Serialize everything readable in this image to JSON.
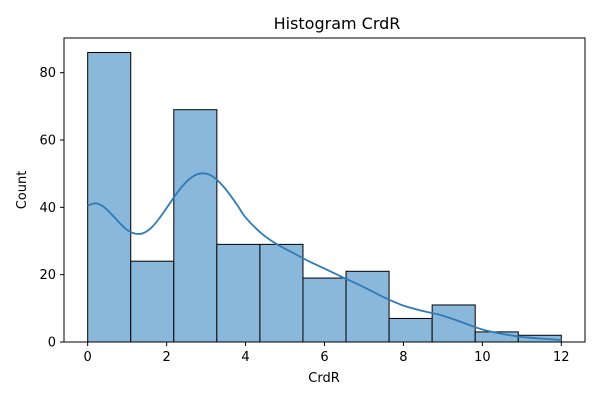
{
  "chart_data": {
    "type": "histogram",
    "title": "Histogram CrdR",
    "xlabel": "CrdR",
    "ylabel": "Count",
    "bins": [
      {
        "start": 0.0,
        "end": 1.0909,
        "count": 86
      },
      {
        "start": 1.0909,
        "end": 2.1818,
        "count": 24
      },
      {
        "start": 2.1818,
        "end": 3.2727,
        "count": 69
      },
      {
        "start": 3.2727,
        "end": 4.3636,
        "count": 29
      },
      {
        "start": 4.3636,
        "end": 5.4545,
        "count": 29
      },
      {
        "start": 5.4545,
        "end": 6.5455,
        "count": 19
      },
      {
        "start": 6.5455,
        "end": 7.6364,
        "count": 21
      },
      {
        "start": 7.6364,
        "end": 8.7273,
        "count": 7
      },
      {
        "start": 8.7273,
        "end": 9.8182,
        "count": 11
      },
      {
        "start": 9.8182,
        "end": 10.9091,
        "count": 3
      },
      {
        "start": 10.9091,
        "end": 12.0,
        "count": 2
      }
    ],
    "kde": {
      "x": [
        0.0,
        0.2,
        0.4,
        0.6,
        0.8,
        1.0,
        1.2,
        1.4,
        1.6,
        1.8,
        2.0,
        2.2,
        2.4,
        2.6,
        2.8,
        3.0,
        3.2,
        3.4,
        3.6,
        3.8,
        4.0,
        4.4,
        4.8,
        5.2,
        5.6,
        6.0,
        6.5,
        7.0,
        7.5,
        8.0,
        8.5,
        9.0,
        9.5,
        10.0,
        10.5,
        11.0,
        11.5,
        12.0
      ],
      "y": [
        40.5,
        41.2,
        40.2,
        38.0,
        35.5,
        33.3,
        32.2,
        32.3,
        33.8,
        36.5,
        39.8,
        43.2,
        46.3,
        48.6,
        49.9,
        50.0,
        48.9,
        46.7,
        43.8,
        40.5,
        37.0,
        32.3,
        29.0,
        26.5,
        24.0,
        21.8,
        19.0,
        16.3,
        13.3,
        10.8,
        9.2,
        7.8,
        5.8,
        3.7,
        2.4,
        1.5,
        1.0,
        0.6
      ]
    },
    "xlim": [
      -0.6,
      12.6
    ],
    "ylim": [
      0,
      90.3
    ],
    "xticks": [
      0,
      2,
      4,
      6,
      8,
      10,
      12
    ],
    "yticks": [
      0,
      20,
      40,
      60,
      80
    ],
    "bar_color": "#8ab8da",
    "bar_edge_color": "#000000",
    "line_color": "#2f7bb6",
    "grid": false,
    "legend": "none"
  }
}
